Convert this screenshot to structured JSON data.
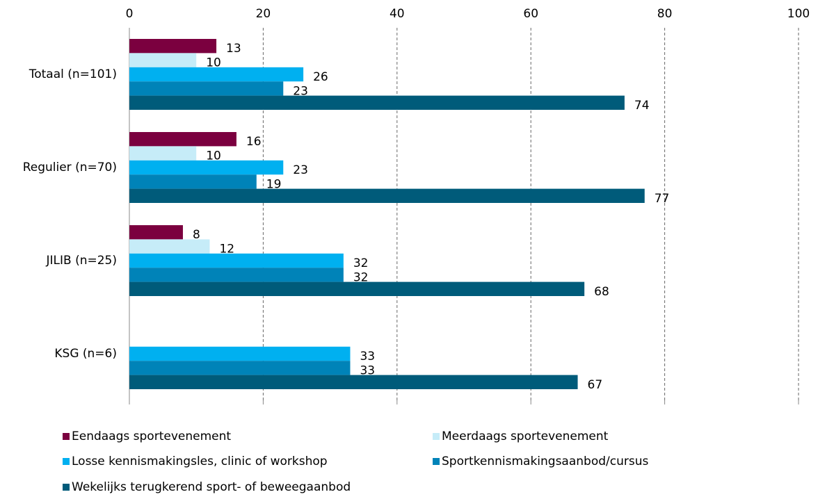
{
  "chart_data": {
    "type": "hbar",
    "categories": [
      "Totaal (n=101)",
      "Regulier (n=70)",
      "JILIB (n=25)",
      "KSG (n=6)"
    ],
    "series": [
      {
        "name": "Eendaags sportevenement",
        "color": "#7b003f",
        "values": [
          13,
          16,
          8,
          null
        ]
      },
      {
        "name": "Meerdaags sportevenement",
        "color": "#c6ecf8",
        "values": [
          10,
          10,
          12,
          null
        ]
      },
      {
        "name": "Losse kennismakingsles, clinic of workshop",
        "color": "#00b0f0",
        "values": [
          26,
          23,
          32,
          33
        ]
      },
      {
        "name": "Sportkennismakingsaanbod/cursus",
        "color": "#0083b8",
        "values": [
          23,
          19,
          32,
          33
        ]
      },
      {
        "name": "Wekelijks terugkerend sport- of beweegaanbod",
        "color": "#005b7a",
        "values": [
          74,
          77,
          68,
          67
        ]
      }
    ],
    "xlim": [
      0,
      100
    ],
    "xticks": [
      0,
      20,
      40,
      60,
      80,
      100
    ],
    "grid": true,
    "legend": "bottom"
  }
}
